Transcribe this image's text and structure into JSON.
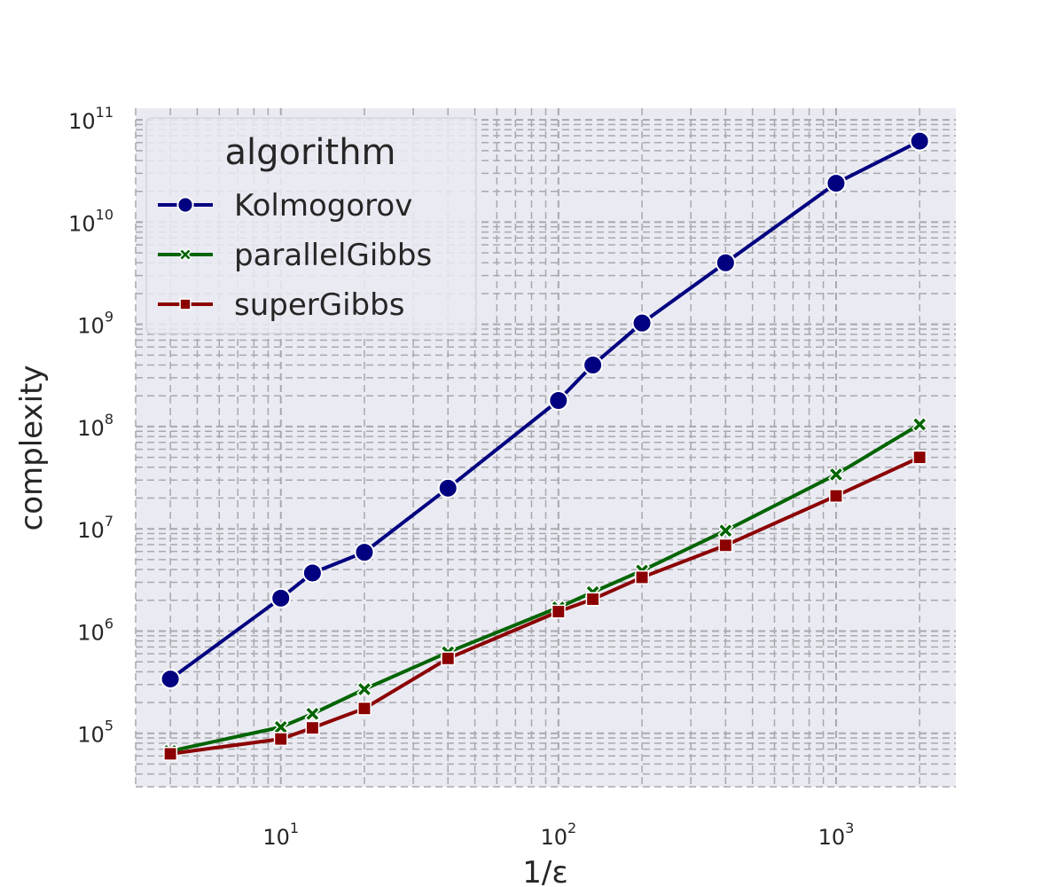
{
  "chart_data": {
    "type": "line",
    "xlabel": "1/ε",
    "ylabel": "complexity",
    "xscale": "log",
    "yscale": "log",
    "xlim": [
      3,
      2700
    ],
    "ylim": [
      30000,
      130000000000
    ],
    "grid": true,
    "x_ticks": [
      {
        "base": "10",
        "exp": "1",
        "value": 10
      },
      {
        "base": "10",
        "exp": "2",
        "value": 100
      },
      {
        "base": "10",
        "exp": "3",
        "value": 1000
      }
    ],
    "y_ticks": [
      {
        "base": "10",
        "exp": "5",
        "value": 100000
      },
      {
        "base": "10",
        "exp": "6",
        "value": 1000000
      },
      {
        "base": "10",
        "exp": "7",
        "value": 10000000
      },
      {
        "base": "10",
        "exp": "8",
        "value": 100000000
      },
      {
        "base": "10",
        "exp": "9",
        "value": 1000000000
      },
      {
        "base": "10",
        "exp": "10",
        "value": 10000000000
      },
      {
        "base": "10",
        "exp": "11",
        "value": 100000000000
      }
    ],
    "legend": {
      "title": "algorithm",
      "position": "top-left"
    },
    "series": [
      {
        "name": "Kolmogorov",
        "color": "#000080",
        "marker": "circle",
        "x": [
          4,
          10,
          13,
          20,
          40,
          100,
          133,
          200,
          400,
          1000,
          2000
        ],
        "y": [
          340000,
          2100000,
          3700000,
          5900000,
          25000000,
          180000000,
          400000000,
          1030000000,
          4000000000,
          24000000000,
          62000000000
        ]
      },
      {
        "name": "parallelGibbs",
        "color": "#006400",
        "marker": "x",
        "x": [
          4,
          10,
          13,
          20,
          40,
          100,
          133,
          200,
          400,
          1000,
          2000
        ],
        "y": [
          67000,
          115000,
          155000,
          270000,
          620000,
          1700000,
          2400000,
          3900000,
          9600000,
          34000000,
          105000000
        ]
      },
      {
        "name": "superGibbs",
        "color": "#8b0000",
        "marker": "square",
        "x": [
          4,
          10,
          13,
          20,
          40,
          100,
          133,
          200,
          400,
          1000,
          2000
        ],
        "y": [
          63000,
          88000,
          113000,
          175000,
          540000,
          1550000,
          2050000,
          3350000,
          6900000,
          21000000,
          50000000
        ]
      }
    ]
  }
}
